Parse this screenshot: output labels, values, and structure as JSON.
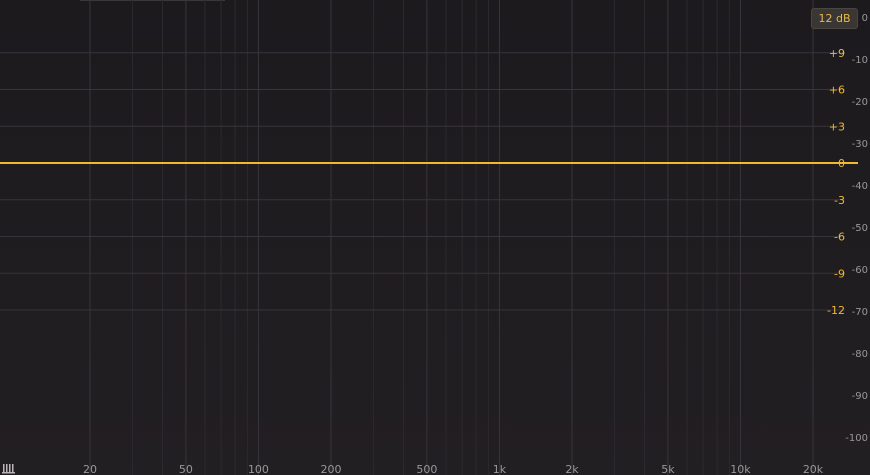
{
  "range_button": {
    "label": "12 dB"
  },
  "colors": {
    "accent": "#f2b82e",
    "grid_major": "#38353a",
    "grid_minor": "#2c2a2e",
    "label_gray": "#9a979a"
  },
  "icons": {
    "corner": "piano-keys-icon"
  },
  "eq_curve": {
    "gain_db": 0
  },
  "freq_axis": {
    "min_hz": 10,
    "max_hz": 30000,
    "ticks": [
      {
        "hz": 20,
        "label": "20"
      },
      {
        "hz": 50,
        "label": "50"
      },
      {
        "hz": 100,
        "label": "100"
      },
      {
        "hz": 200,
        "label": "200"
      },
      {
        "hz": 500,
        "label": "500"
      },
      {
        "hz": 1000,
        "label": "1k"
      },
      {
        "hz": 2000,
        "label": "2k"
      },
      {
        "hz": 5000,
        "label": "5k"
      },
      {
        "hz": 10000,
        "label": "10k"
      },
      {
        "hz": 20000,
        "label": "20k"
      }
    ]
  },
  "gain_axis": {
    "min": -12,
    "max": 12,
    "ticks": [
      {
        "db": 9,
        "label": "+9"
      },
      {
        "db": 6,
        "label": "+6"
      },
      {
        "db": 3,
        "label": "+3"
      },
      {
        "db": 0,
        "label": "0"
      },
      {
        "db": -3,
        "label": "-3"
      },
      {
        "db": -6,
        "label": "-6"
      },
      {
        "db": -9,
        "label": "-9"
      },
      {
        "db": -12,
        "label": "-12"
      }
    ]
  },
  "analyzer_axis": {
    "labels": [
      "0",
      "-10",
      "-20",
      "-30",
      "-40",
      "-50",
      "-60",
      "-70",
      "-80",
      "-90",
      "-100"
    ]
  }
}
